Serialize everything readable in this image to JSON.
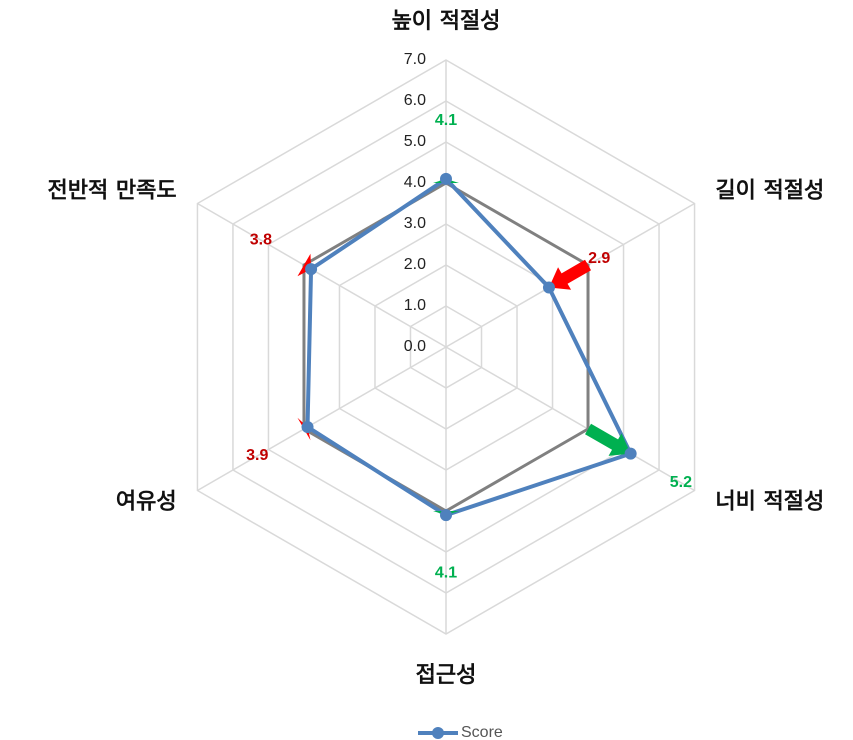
{
  "chart_data": {
    "type": "radar",
    "categories": [
      "높이 적절성",
      "길이 적절성",
      "너비 적절성",
      "접근성",
      "여유성",
      "전반적 만족도"
    ],
    "series": [
      {
        "name": "Score",
        "color": "#4f81bd",
        "values": [
          4.1,
          2.9,
          5.2,
          4.1,
          3.9,
          3.8
        ]
      },
      {
        "color": "#808080",
        "values": [
          4.0,
          4.0,
          4.0,
          4.0,
          4.0,
          4.0
        ]
      }
    ],
    "value_labels": [
      "4.1",
      "2.9",
      "5.2",
      "4.1",
      "3.9",
      "3.8"
    ],
    "label_colors": [
      "#00b050",
      "#c00000",
      "#00b050",
      "#00b050",
      "#c00000",
      "#c00000"
    ],
    "arrow_colors": [
      "#00b050",
      "#ff0000",
      "#00b050",
      "#00b050",
      "#ff0000",
      "#ff0000"
    ],
    "rlim": [
      0,
      7
    ],
    "rticks": [
      {
        "value": 0,
        "label": "0.0"
      },
      {
        "value": 1,
        "label": "1.0"
      },
      {
        "value": 2,
        "label": "2.0"
      },
      {
        "value": 3,
        "label": "3.0"
      },
      {
        "value": 4,
        "label": "4.0"
      },
      {
        "value": 5,
        "label": "5.0"
      },
      {
        "value": 6,
        "label": "6.0"
      },
      {
        "value": 7,
        "label": "7.0"
      }
    ],
    "grid": true,
    "legend": "bottom"
  }
}
